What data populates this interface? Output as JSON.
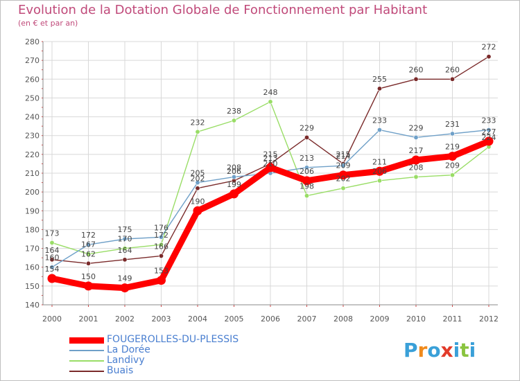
{
  "colors": {
    "title": "#c04a7a",
    "axis": "#555555",
    "grid": "#d8d8d8",
    "brand": [
      "#3aa0d8",
      "#f08a1c",
      "#3aa0d8",
      "#f08a1c",
      "#3aa0d8",
      "#8ac43f"
    ]
  },
  "chart_data": {
    "type": "line",
    "title": "Evolution de la Dotation Globale de Fonctionnement par Habitant",
    "subtitle": "(en € et par an)",
    "x": [
      "2000",
      "2001",
      "2002",
      "2003",
      "2004",
      "2005",
      "2006",
      "2007",
      "2008",
      "2009",
      "2010",
      "2011",
      "2012"
    ],
    "ylim": [
      140,
      280
    ],
    "yticks": [
      140,
      150,
      160,
      170,
      180,
      190,
      200,
      210,
      220,
      230,
      240,
      250,
      260,
      270,
      280
    ],
    "grid": true,
    "series": [
      {
        "name": "FOUGEROLLES-DU-PLESSIS",
        "color": "#ff0000",
        "values": [
          154,
          150,
          149,
          153,
          190,
          199,
          213,
          206,
          209,
          211,
          217,
          219,
          227
        ]
      },
      {
        "name": "La Dorée",
        "color": "#6fa0c8",
        "values": [
          160,
          172,
          175,
          176,
          205,
          208,
          210,
          213,
          214,
          233,
          229,
          231,
          233
        ]
      },
      {
        "name": "Landivy",
        "color": "#99dd66",
        "values": [
          173,
          167,
          170,
          172,
          232,
          238,
          248,
          198,
          202,
          206,
          208,
          209,
          224
        ]
      },
      {
        "name": "Buais",
        "color": "#7a2a2a",
        "values": [
          164,
          162,
          164,
          166,
          202,
          206,
          215,
          229,
          215,
          255,
          260,
          260,
          272
        ]
      }
    ]
  },
  "brand": {
    "letters": [
      "P",
      "r",
      "o",
      "x",
      "i",
      "t",
      "i"
    ]
  }
}
